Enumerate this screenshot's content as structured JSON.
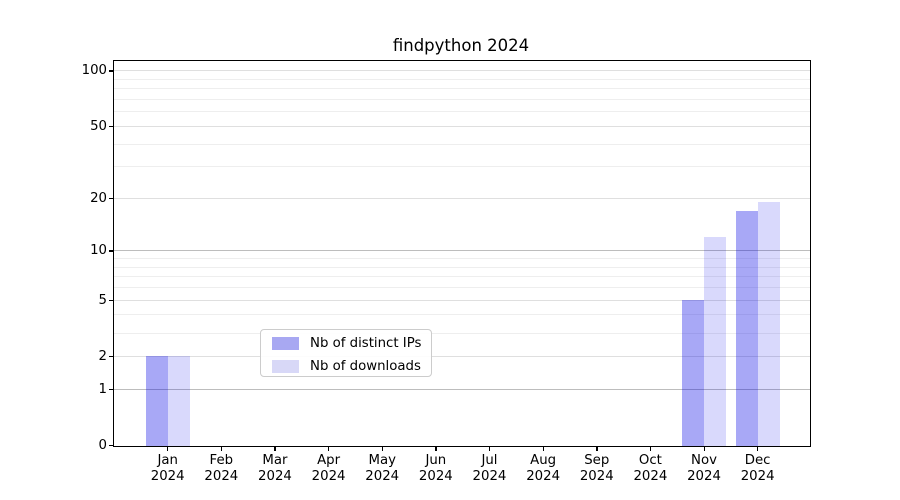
{
  "title": "findpython 2024",
  "chart_data": {
    "type": "bar",
    "title": "findpython 2024",
    "categories": [
      "Jan",
      "Feb",
      "Mar",
      "Apr",
      "May",
      "Jun",
      "Jul",
      "Aug",
      "Sep",
      "Oct",
      "Nov",
      "Dec"
    ],
    "category_year": "2024",
    "series": [
      {
        "name": "Nb of distinct IPs",
        "color": "rgba(0,0,230,0.34)",
        "swatch_color": "#a8a8f2",
        "values": [
          2,
          0,
          0,
          0,
          0,
          0,
          0,
          0,
          0,
          0,
          5,
          17
        ]
      },
      {
        "name": "Nb of downloads",
        "color": "rgba(0,0,235,0.15)",
        "swatch_color": "#d8d8f7",
        "values": [
          2,
          0,
          0,
          0,
          0,
          0,
          0,
          0,
          0,
          0,
          12,
          19
        ]
      }
    ],
    "yscale": "log10(value+1)",
    "yticks": [
      0,
      1,
      2,
      5,
      10,
      20,
      50,
      100
    ],
    "minor_yticks": [
      3,
      4,
      6,
      7,
      8,
      9,
      30,
      40,
      60,
      70,
      80,
      90
    ],
    "pow10_gridlines": [
      1,
      10
    ],
    "ylim": [
      0,
      114
    ],
    "xlabel": "",
    "ylabel": "",
    "grid": "both",
    "legend_position": "lower center",
    "colors": {
      "grid_pow10": "#bdbdbd",
      "grid_major": "#dfdfdf",
      "grid_minor": "#eeeeee",
      "spine": "#000000",
      "background": "#ffffff"
    }
  }
}
